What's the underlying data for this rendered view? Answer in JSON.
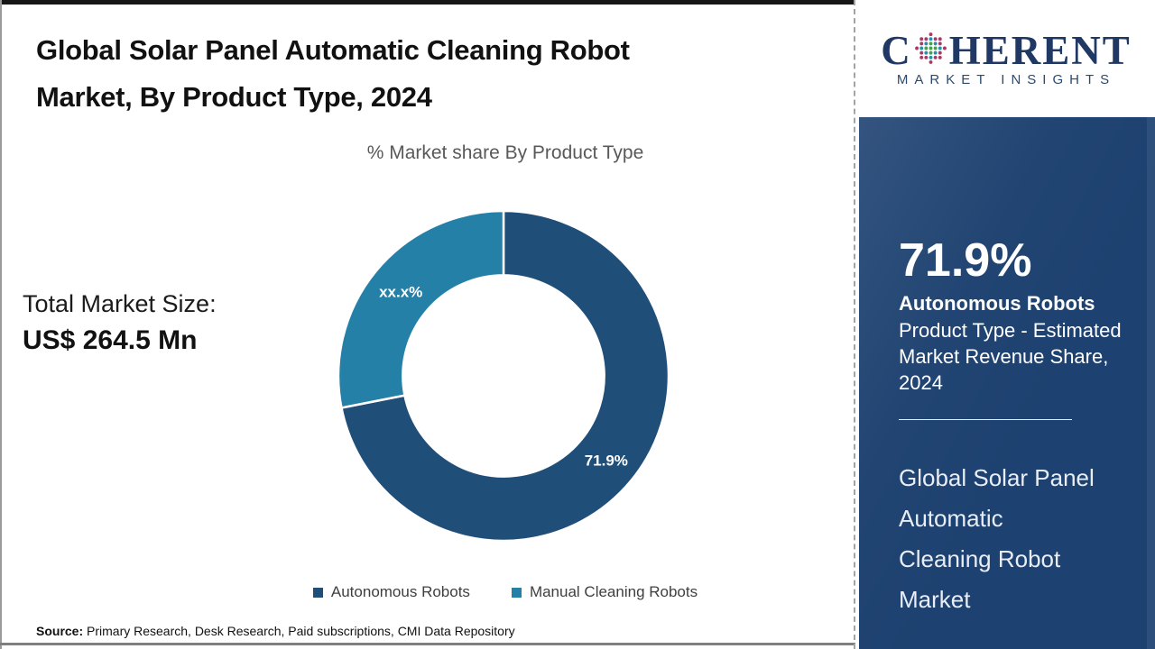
{
  "header": {
    "title_line1": "Global Solar Panel Automatic Cleaning Robot",
    "title_line2": "Market, By Product Type, 2024"
  },
  "chart_data": {
    "type": "pie",
    "subtype": "donut",
    "title": "% Market share By Product Type",
    "categories": [
      "Autonomous Robots",
      "Manual Cleaning Robots"
    ],
    "values": [
      71.9,
      28.1
    ],
    "display_labels": [
      "71.9%",
      "xx.x%"
    ],
    "colors": [
      "#1F4E79",
      "#2580A8"
    ],
    "inner_radius_ratio": 0.61,
    "legend_position": "bottom",
    "start_angle_deg": 0,
    "direction": "clockwise"
  },
  "stats": {
    "total_label": "Total Market Size:",
    "total_value": "US$ 264.5 Mn"
  },
  "source": {
    "prefix": "Source:",
    "text": " Primary Research, Desk Research, Paid subscriptions, CMI Data Repository"
  },
  "sidebar": {
    "logo": {
      "word_start": "C",
      "word_end": "HERENT",
      "subtitle": "MARKET INSIGHTS",
      "globe_colors": {
        "inner": "#47a04f",
        "middle": "#2a8fa8",
        "outer": "#a83a66"
      }
    },
    "highlight": {
      "value": "71.9%",
      "label": "Autonomous Robots",
      "description": "Product Type - Estimated Market Revenue Share, 2024"
    },
    "panel_title_lines": [
      "Global Solar Panel",
      "Automatic",
      "Cleaning Robot",
      "Market"
    ],
    "colors": {
      "panel_bg": "#1d4170",
      "logo_navy": "#1f3864"
    }
  }
}
